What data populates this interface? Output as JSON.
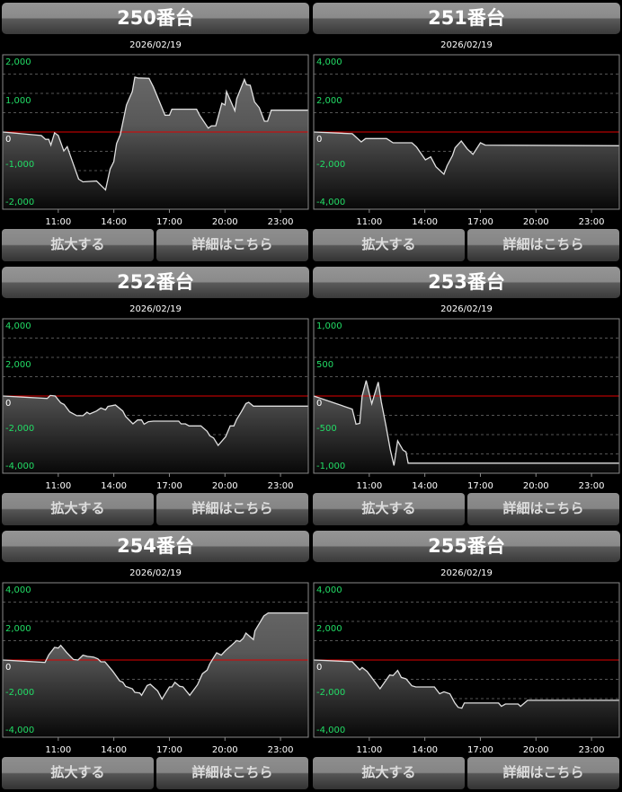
{
  "colors": {
    "line": "#e0e0e0",
    "zero_line": "#e00000",
    "grid": "#555555",
    "positive_label": "#22dd66",
    "zero_label": "#ffffff",
    "fill_top": "#6e6e6e",
    "fill_bottom": "#080808",
    "frame": "#8a8a8a"
  },
  "buttons": {
    "zoom_label": "拡大する",
    "detail_label": "詳細はこちら"
  },
  "chart_data": [
    {
      "type": "area",
      "title": "250番台",
      "subtitle": "2026/02/19",
      "xlim": [
        "08:00",
        "24:30"
      ],
      "xticks": [
        "11:00",
        "14:00",
        "17:00",
        "20:00",
        "23:00"
      ],
      "ylim": [
        -2000,
        2000
      ],
      "yticks": [
        2000,
        1000,
        0,
        -1000,
        -2000
      ],
      "ytick_labels": [
        "2,000",
        "1,000",
        "0",
        "-1,000",
        "-2,000"
      ],
      "grid_step": 500,
      "grid": true,
      "points": [
        [
          "08:00",
          0
        ],
        [
          "10:05",
          -90
        ],
        [
          "10:19",
          -190
        ],
        [
          "10:29",
          -190
        ],
        [
          "10:36",
          -340
        ],
        [
          "10:48",
          -20
        ],
        [
          "11:00",
          -90
        ],
        [
          "11:18",
          -490
        ],
        [
          "11:29",
          -380
        ],
        [
          "11:39",
          -610
        ],
        [
          "12:06",
          -1220
        ],
        [
          "12:20",
          -1290
        ],
        [
          "13:04",
          -1270
        ],
        [
          "13:33",
          -1500
        ],
        [
          "13:48",
          -960
        ],
        [
          "14:00",
          -770
        ],
        [
          "14:09",
          -300
        ],
        [
          "14:21",
          -70
        ],
        [
          "14:41",
          700
        ],
        [
          "15:00",
          1050
        ],
        [
          "15:08",
          1420
        ],
        [
          "15:18",
          1400
        ],
        [
          "15:54",
          1390
        ],
        [
          "16:08",
          1170
        ],
        [
          "16:46",
          435
        ],
        [
          "17:00",
          435
        ],
        [
          "17:08",
          590
        ],
        [
          "18:28",
          590
        ],
        [
          "18:38",
          435
        ],
        [
          "19:06",
          100
        ],
        [
          "19:16",
          160
        ],
        [
          "19:30",
          160
        ],
        [
          "19:50",
          745
        ],
        [
          "20:00",
          700
        ],
        [
          "20:05",
          1050
        ],
        [
          "20:32",
          550
        ],
        [
          "20:38",
          860
        ],
        [
          "21:03",
          1360
        ],
        [
          "21:10",
          1225
        ],
        [
          "21:22",
          1210
        ],
        [
          "21:36",
          780
        ],
        [
          "21:51",
          630
        ],
        [
          "22:08",
          280
        ],
        [
          "22:18",
          280
        ],
        [
          "22:30",
          565
        ],
        [
          "24:30",
          565
        ]
      ]
    },
    {
      "type": "area",
      "title": "251番台",
      "subtitle": "2026/02/19",
      "xlim": [
        "08:00",
        "24:30"
      ],
      "xticks": [
        "11:00",
        "14:00",
        "17:00",
        "20:00",
        "23:00"
      ],
      "ylim": [
        -4000,
        4000
      ],
      "yticks": [
        4000,
        2000,
        0,
        -2000,
        -4000
      ],
      "ytick_labels": [
        "4,000",
        "2,000",
        "0",
        "-2,000",
        "-4,000"
      ],
      "grid_step": 1000,
      "grid": true,
      "points": [
        [
          "08:00",
          0
        ],
        [
          "10:05",
          -90
        ],
        [
          "10:34",
          -510
        ],
        [
          "10:48",
          -340
        ],
        [
          "11:56",
          -340
        ],
        [
          "12:17",
          -560
        ],
        [
          "13:18",
          -560
        ],
        [
          "13:33",
          -775
        ],
        [
          "14:02",
          -1440
        ],
        [
          "14:19",
          -1290
        ],
        [
          "14:36",
          -1800
        ],
        [
          "15:02",
          -2185
        ],
        [
          "15:12",
          -1750
        ],
        [
          "15:30",
          -1210
        ],
        [
          "15:38",
          -820
        ],
        [
          "15:58",
          -465
        ],
        [
          "16:17",
          -870
        ],
        [
          "16:36",
          -1160
        ],
        [
          "17:00",
          -560
        ],
        [
          "17:16",
          -680
        ],
        [
          "24:30",
          -710
        ]
      ]
    },
    {
      "type": "area",
      "title": "252番台",
      "subtitle": "2026/02/19",
      "xlim": [
        "08:00",
        "24:30"
      ],
      "xticks": [
        "11:00",
        "14:00",
        "17:00",
        "20:00",
        "23:00"
      ],
      "ylim": [
        -4000,
        4000
      ],
      "yticks": [
        4000,
        2000,
        0,
        -2000,
        -4000
      ],
      "ytick_labels": [
        "4,000",
        "2,000",
        "0",
        "-2,000",
        "-4,000"
      ],
      "grid_step": 1000,
      "grid": true,
      "points": [
        [
          "08:00",
          0
        ],
        [
          "10:24",
          -125
        ],
        [
          "10:34",
          30
        ],
        [
          "10:50",
          0
        ],
        [
          "11:08",
          -355
        ],
        [
          "11:19",
          -435
        ],
        [
          "11:37",
          -820
        ],
        [
          "12:00",
          -1020
        ],
        [
          "12:20",
          -1020
        ],
        [
          "12:33",
          -840
        ],
        [
          "12:42",
          -930
        ],
        [
          "13:04",
          -775
        ],
        [
          "13:18",
          -620
        ],
        [
          "13:33",
          -715
        ],
        [
          "13:41",
          -540
        ],
        [
          "14:05",
          -465
        ],
        [
          "14:29",
          -775
        ],
        [
          "14:38",
          -1055
        ],
        [
          "15:02",
          -1440
        ],
        [
          "15:17",
          -1240
        ],
        [
          "15:30",
          -1240
        ],
        [
          "15:38",
          -1460
        ],
        [
          "15:52",
          -1330
        ],
        [
          "16:08",
          -1300
        ],
        [
          "17:30",
          -1300
        ],
        [
          "17:38",
          -1440
        ],
        [
          "17:52",
          -1440
        ],
        [
          "18:04",
          -1550
        ],
        [
          "18:42",
          -1550
        ],
        [
          "19:02",
          -1830
        ],
        [
          "19:11",
          -2060
        ],
        [
          "19:23",
          -2170
        ],
        [
          "19:38",
          -2560
        ],
        [
          "20:02",
          -2110
        ],
        [
          "20:17",
          -1550
        ],
        [
          "20:29",
          -1550
        ],
        [
          "20:38",
          -1210
        ],
        [
          "20:53",
          -820
        ],
        [
          "21:08",
          -390
        ],
        [
          "21:17",
          -325
        ],
        [
          "21:32",
          -525
        ],
        [
          "24:30",
          -525
        ]
      ]
    },
    {
      "type": "area",
      "title": "253番台",
      "subtitle": "2026/02/19",
      "xlim": [
        "08:00",
        "24:30"
      ],
      "xticks": [
        "11:00",
        "14:00",
        "17:00",
        "20:00",
        "23:00"
      ],
      "ylim": [
        -1000,
        1000
      ],
      "yticks": [
        1000,
        500,
        0,
        -500,
        -1000
      ],
      "ytick_labels": [
        "1,000",
        "500",
        "0",
        "-500",
        "-1,000"
      ],
      "grid_step": 250,
      "grid": true,
      "points": [
        [
          "08:00",
          0
        ],
        [
          "10:05",
          -170
        ],
        [
          "10:17",
          -365
        ],
        [
          "10:29",
          -355
        ],
        [
          "10:37",
          0
        ],
        [
          "10:50",
          200
        ],
        [
          "11:08",
          -100
        ],
        [
          "11:29",
          180
        ],
        [
          "11:39",
          -75
        ],
        [
          "11:54",
          -385
        ],
        [
          "12:08",
          -695
        ],
        [
          "12:20",
          -900
        ],
        [
          "12:32",
          -580
        ],
        [
          "12:49",
          -700
        ],
        [
          "12:59",
          -725
        ],
        [
          "13:06",
          -870
        ],
        [
          "24:30",
          -870
        ]
      ]
    },
    {
      "type": "area",
      "title": "254番台",
      "subtitle": "2026/02/19",
      "xlim": [
        "08:00",
        "24:30"
      ],
      "xticks": [
        "11:00",
        "14:00",
        "17:00",
        "20:00",
        "23:00"
      ],
      "ylim": [
        -4000,
        4000
      ],
      "yticks": [
        4000,
        2000,
        0,
        -2000,
        -4000
      ],
      "ytick_labels": [
        "4,000",
        "2,000",
        "0",
        "-2,000",
        "-4,000"
      ],
      "grid_step": 1000,
      "grid": true,
      "points": [
        [
          "08:00",
          0
        ],
        [
          "10:17",
          -125
        ],
        [
          "10:29",
          265
        ],
        [
          "10:48",
          650
        ],
        [
          "11:00",
          620
        ],
        [
          "11:08",
          760
        ],
        [
          "11:27",
          390
        ],
        [
          "11:49",
          30
        ],
        [
          "12:04",
          0
        ],
        [
          "12:20",
          250
        ],
        [
          "12:35",
          185
        ],
        [
          "12:54",
          155
        ],
        [
          "13:08",
          60
        ],
        [
          "13:18",
          -95
        ],
        [
          "13:31",
          -95
        ],
        [
          "13:57",
          -590
        ],
        [
          "14:19",
          -1085
        ],
        [
          "14:29",
          -1150
        ],
        [
          "14:38",
          -1365
        ],
        [
          "15:00",
          -1490
        ],
        [
          "15:08",
          -1675
        ],
        [
          "15:24",
          -1705
        ],
        [
          "15:30",
          -1830
        ],
        [
          "15:48",
          -1320
        ],
        [
          "15:58",
          -1255
        ],
        [
          "16:22",
          -1600
        ],
        [
          "16:36",
          -2030
        ],
        [
          "17:00",
          -1395
        ],
        [
          "17:08",
          -1395
        ],
        [
          "17:18",
          -1160
        ],
        [
          "17:33",
          -1365
        ],
        [
          "17:44",
          -1395
        ],
        [
          "18:06",
          -1830
        ],
        [
          "18:31",
          -1285
        ],
        [
          "18:47",
          -710
        ],
        [
          "19:02",
          -525
        ],
        [
          "19:11",
          -200
        ],
        [
          "19:33",
          370
        ],
        [
          "19:48",
          250
        ],
        [
          "20:02",
          495
        ],
        [
          "20:19",
          730
        ],
        [
          "20:38",
          1010
        ],
        [
          "20:48",
          960
        ],
        [
          "20:59",
          1115
        ],
        [
          "21:08",
          1395
        ],
        [
          "21:32",
          1055
        ],
        [
          "21:37",
          1505
        ],
        [
          "22:06",
          2280
        ],
        [
          "22:20",
          2435
        ],
        [
          "24:30",
          2435
        ]
      ]
    },
    {
      "type": "area",
      "title": "255番台",
      "subtitle": "2026/02/19",
      "xlim": [
        "08:00",
        "24:30"
      ],
      "xticks": [
        "11:00",
        "14:00",
        "17:00",
        "20:00",
        "23:00"
      ],
      "ylim": [
        -4000,
        4000
      ],
      "yticks": [
        4000,
        2000,
        0,
        -2000,
        -4000
      ],
      "ytick_labels": [
        "4,000",
        "2,000",
        "0",
        "-2,000",
        "-4,000"
      ],
      "grid_step": 1000,
      "grid": true,
      "points": [
        [
          "08:00",
          0
        ],
        [
          "10:05",
          -90
        ],
        [
          "10:29",
          -510
        ],
        [
          "10:37",
          -390
        ],
        [
          "10:53",
          -590
        ],
        [
          "11:35",
          -1490
        ],
        [
          "12:06",
          -775
        ],
        [
          "12:17",
          -805
        ],
        [
          "12:32",
          -540
        ],
        [
          "12:44",
          -900
        ],
        [
          "12:59",
          -975
        ],
        [
          "13:18",
          -1335
        ],
        [
          "13:31",
          -1395
        ],
        [
          "14:31",
          -1395
        ],
        [
          "14:48",
          -1750
        ],
        [
          "15:02",
          -1645
        ],
        [
          "15:21",
          -1750
        ],
        [
          "15:37",
          -2215
        ],
        [
          "15:48",
          -2450
        ],
        [
          "16:00",
          -2495
        ],
        [
          "16:08",
          -2230
        ],
        [
          "17:59",
          -2230
        ],
        [
          "18:08",
          -2400
        ],
        [
          "18:21",
          -2280
        ],
        [
          "19:02",
          -2280
        ],
        [
          "19:10",
          -2400
        ],
        [
          "19:33",
          -2090
        ],
        [
          "24:30",
          -2090
        ]
      ]
    }
  ]
}
